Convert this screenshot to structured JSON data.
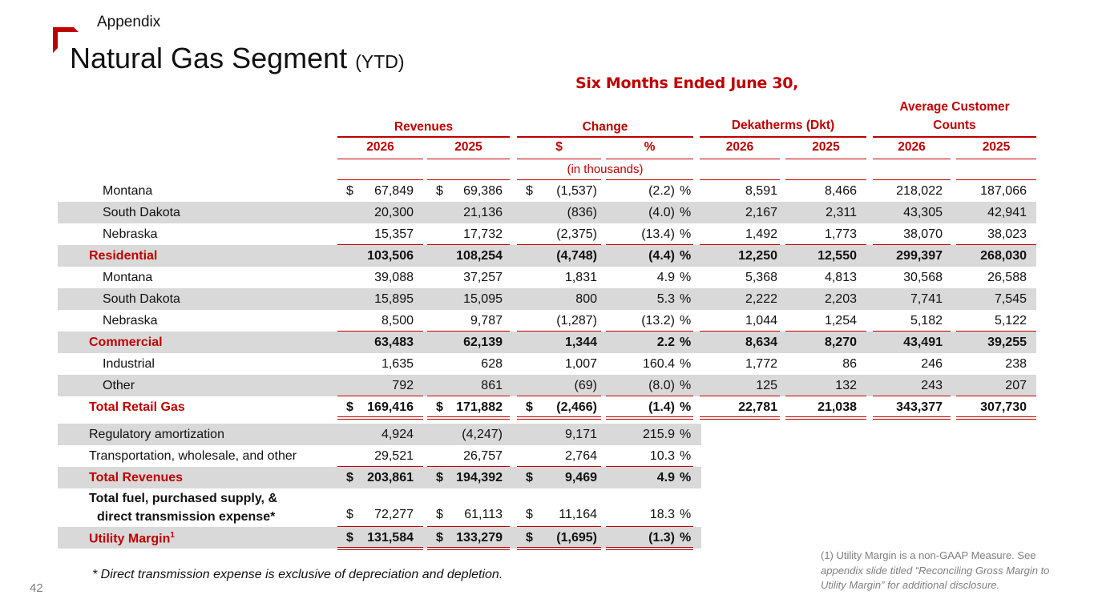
{
  "header": {
    "section": "Appendix",
    "title": "Natural Gas Segment",
    "title_suffix": "(YTD)"
  },
  "table": {
    "period": "Six Months Ended June 30,",
    "groups": {
      "revenues": "Revenues",
      "change": "Change",
      "dekatherms": "Dekatherms (Dkt)",
      "customers_line1": "Average Customer",
      "customers_line2": "Counts"
    },
    "subheaders": {
      "rev_2026": "2026",
      "rev_2025": "2025",
      "chg_dollar": "$",
      "chg_pct": "%",
      "dkt_2026": "2026",
      "dkt_2025": "2025",
      "cust_2026": "2026",
      "cust_2025": "2025"
    },
    "units": "(in thousands)",
    "currency_symbol": "$",
    "pct_symbol": "%",
    "rows": [
      {
        "label": "Montana",
        "rev_2026": "67,849",
        "rev_2025": "69,386",
        "chg_dollar": "(1,537)",
        "chg_pct": "(2.2)",
        "dkt_2026": "8,591",
        "dkt_2025": "8,466",
        "cust_2026": "218,022",
        "cust_2025": "187,066"
      },
      {
        "label": "South Dakota",
        "rev_2026": "20,300",
        "rev_2025": "21,136",
        "chg_dollar": "(836)",
        "chg_pct": "(4.0)",
        "dkt_2026": "2,167",
        "dkt_2025": "2,311",
        "cust_2026": "43,305",
        "cust_2025": "42,941"
      },
      {
        "label": "Nebraska",
        "rev_2026": "15,357",
        "rev_2025": "17,732",
        "chg_dollar": "(2,375)",
        "chg_pct": "(13.4)",
        "dkt_2026": "1,492",
        "dkt_2025": "1,773",
        "cust_2026": "38,070",
        "cust_2025": "38,023"
      },
      {
        "label": "Residential",
        "rev_2026": "103,506",
        "rev_2025": "108,254",
        "chg_dollar": "(4,748)",
        "chg_pct": "(4.4)",
        "dkt_2026": "12,250",
        "dkt_2025": "12,550",
        "cust_2026": "299,397",
        "cust_2025": "268,030"
      },
      {
        "label": "Montana",
        "rev_2026": "39,088",
        "rev_2025": "37,257",
        "chg_dollar": "1,831",
        "chg_pct": "4.9",
        "dkt_2026": "5,368",
        "dkt_2025": "4,813",
        "cust_2026": "30,568",
        "cust_2025": "26,588"
      },
      {
        "label": "South Dakota",
        "rev_2026": "15,895",
        "rev_2025": "15,095",
        "chg_dollar": "800",
        "chg_pct": "5.3",
        "dkt_2026": "2,222",
        "dkt_2025": "2,203",
        "cust_2026": "7,741",
        "cust_2025": "7,545"
      },
      {
        "label": "Nebraska",
        "rev_2026": "8,500",
        "rev_2025": "9,787",
        "chg_dollar": "(1,287)",
        "chg_pct": "(13.2)",
        "dkt_2026": "1,044",
        "dkt_2025": "1,254",
        "cust_2026": "5,182",
        "cust_2025": "5,122"
      },
      {
        "label": "Commercial",
        "rev_2026": "63,483",
        "rev_2025": "62,139",
        "chg_dollar": "1,344",
        "chg_pct": "2.2",
        "dkt_2026": "8,634",
        "dkt_2025": "8,270",
        "cust_2026": "43,491",
        "cust_2025": "39,255"
      },
      {
        "label": "Industrial",
        "rev_2026": "1,635",
        "rev_2025": "628",
        "chg_dollar": "1,007",
        "chg_pct": "160.4",
        "dkt_2026": "1,772",
        "dkt_2025": "86",
        "cust_2026": "246",
        "cust_2025": "238"
      },
      {
        "label": "Other",
        "rev_2026": "792",
        "rev_2025": "861",
        "chg_dollar": "(69)",
        "chg_pct": "(8.0)",
        "dkt_2026": "125",
        "dkt_2025": "132",
        "cust_2026": "243",
        "cust_2025": "207"
      },
      {
        "label": "Total Retail Gas",
        "rev_2026": "169,416",
        "rev_2025": "171,882",
        "chg_dollar": "(2,466)",
        "chg_pct": "(1.4)",
        "dkt_2026": "22,781",
        "dkt_2025": "21,038",
        "cust_2026": "343,377",
        "cust_2025": "307,730"
      },
      {
        "label": "Regulatory amortization",
        "rev_2026": "4,924",
        "rev_2025": "(4,247)",
        "chg_dollar": "9,171",
        "chg_pct": "215.9"
      },
      {
        "label": "Transportation, wholesale, and other",
        "rev_2026": "29,521",
        "rev_2025": "26,757",
        "chg_dollar": "2,764",
        "chg_pct": "10.3"
      },
      {
        "label": "Total Revenues",
        "rev_2026": "203,861",
        "rev_2025": "194,392",
        "chg_dollar": "9,469",
        "chg_pct": "4.9"
      },
      {
        "label_line1": "Total fuel, purchased supply, &",
        "label_line2": "direct transmission expense*",
        "rev_2026": "72,277",
        "rev_2025": "61,113",
        "chg_dollar": "11,164",
        "chg_pct": "18.3"
      },
      {
        "label": "Utility Margin",
        "label_sup": "1",
        "rev_2026": "131,584",
        "rev_2025": "133,279",
        "chg_dollar": "(1,695)",
        "chg_pct": "(1.3)"
      }
    ]
  },
  "footnotes": {
    "asterisk": "* Direct transmission expense is exclusive of depreciation and depletion.",
    "utility_margin_lead": "(1) Utility Margin is a non-GAAP Measure.  See",
    "utility_margin_italic": "appendix slide titled “Reconciling Gross Margin to Utility Margin” for additional disclosure."
  },
  "page_number": "42",
  "colors": {
    "accent": "#c00000",
    "shade": "#d9d9d9",
    "muted": "#7f7f7f"
  }
}
